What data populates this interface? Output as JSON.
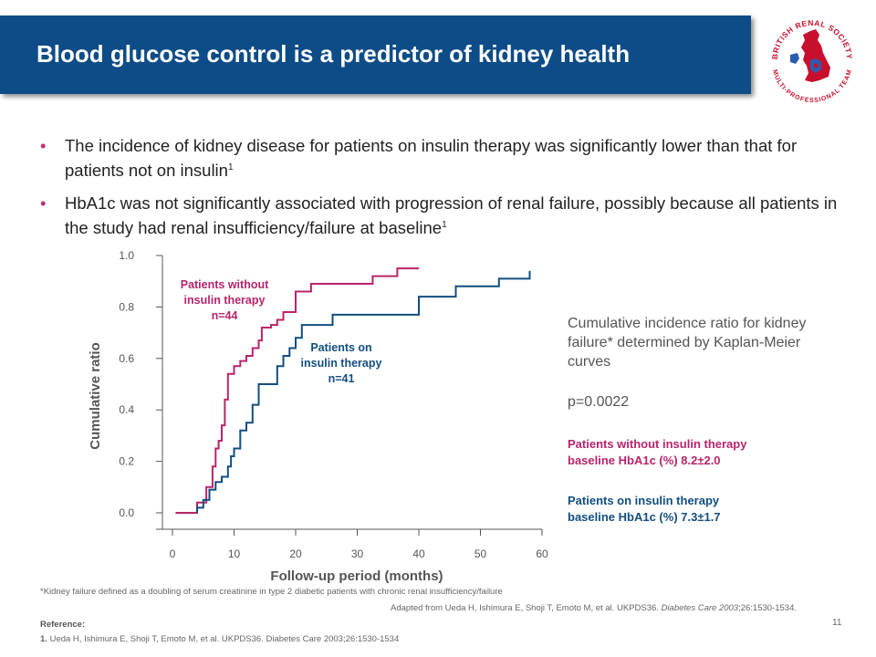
{
  "slide": {
    "title": "Blood glucose control is a predictor of kidney health",
    "bullets": [
      {
        "text": "The incidence of kidney disease for patients on insulin therapy was significantly lower than that for patients not on insulin",
        "sup": "1"
      },
      {
        "text": "HbA1c was not significantly associated with progression of renal failure, possibly because all patients in the study had renal insufficiency/failure at baseline",
        "sup": "1"
      }
    ],
    "side_description": "Cumulative incidence ratio for kidney failure* determined by Kaplan-Meier curves",
    "p_value": "p=0.0022",
    "group_without": {
      "line1": "Patients without insulin therapy",
      "line2": "baseline HbA1c (%) 8.2±2.0"
    },
    "group_with": {
      "line1": "Patients on insulin therapy",
      "line2": "baseline HbA1c (%) 7.3±1.7"
    },
    "footnote": "*Kidney failure defined as a doubling of serum creatinine in type 2 diabetic patients with chronic renal insufficiency/failure",
    "adapted_prefix": "Adapted from Ueda H, Ishimura E, Shoji T, Emoto M, et al. UKPDS36.",
    "adapted_journal": "Diabetes Care 2003",
    "adapted_suffix": ";26:1530-1534.",
    "reference_label": "Reference:",
    "reference_number": "1.",
    "reference_text": "Ueda H, Ishimura E, Shoji T, Emoto M, et al. UKPDS36. Diabetes Care 2003;26:1530-1534",
    "page_number": "11",
    "logo": {
      "top_text": "BRITISH RENAL SOCIETY",
      "bottom_text": "MULTI-PROFESSIONAL TEAM",
      "icon": "uk-map-with-kidney-icon"
    },
    "colors": {
      "title_bar": "#0d4c87",
      "without_insulin": "#b8246a",
      "with_insulin": "#124e7f",
      "bullet": "#c0316f"
    }
  },
  "chart_data": {
    "type": "line",
    "step": true,
    "xlabel": "Follow-up period (months)",
    "ylabel": "Cumulative ratio",
    "xlim": [
      0,
      60
    ],
    "ylim": [
      0.0,
      1.0
    ],
    "xticks": [
      "0",
      "10",
      "20",
      "30",
      "40",
      "50",
      "60"
    ],
    "yticks": [
      "0.0",
      "0.2",
      "0.4",
      "0.6",
      "0.8",
      "1.0"
    ],
    "grid": false,
    "series": [
      {
        "name": "Patients without insulin therapy",
        "label_lines": [
          "Patients without",
          "insulin therapy",
          "n=44"
        ],
        "color": "#b8246a",
        "points": [
          [
            0.5,
            0
          ],
          [
            4,
            0
          ],
          [
            4,
            0.04
          ],
          [
            5.5,
            0.04
          ],
          [
            5.5,
            0.1
          ],
          [
            6.5,
            0.1
          ],
          [
            6.5,
            0.18
          ],
          [
            7,
            0.18
          ],
          [
            7,
            0.25
          ],
          [
            7.5,
            0.25
          ],
          [
            7.5,
            0.28
          ],
          [
            8,
            0.28
          ],
          [
            8,
            0.34
          ],
          [
            8.5,
            0.34
          ],
          [
            8.5,
            0.44
          ],
          [
            9,
            0.44
          ],
          [
            9,
            0.54
          ],
          [
            10,
            0.54
          ],
          [
            10,
            0.57
          ],
          [
            11,
            0.57
          ],
          [
            11,
            0.59
          ],
          [
            12,
            0.59
          ],
          [
            12,
            0.61
          ],
          [
            13,
            0.61
          ],
          [
            13,
            0.64
          ],
          [
            14,
            0.64
          ],
          [
            14,
            0.67
          ],
          [
            14.5,
            0.67
          ],
          [
            14.5,
            0.72
          ],
          [
            16,
            0.72
          ],
          [
            16,
            0.73
          ],
          [
            17,
            0.73
          ],
          [
            17,
            0.75
          ],
          [
            18,
            0.75
          ],
          [
            18,
            0.78
          ],
          [
            20,
            0.78
          ],
          [
            20,
            0.86
          ],
          [
            22.5,
            0.86
          ],
          [
            22.5,
            0.89
          ],
          [
            32.5,
            0.89
          ],
          [
            32.5,
            0.92
          ],
          [
            36.5,
            0.92
          ],
          [
            36.5,
            0.95
          ],
          [
            40,
            0.95
          ]
        ]
      },
      {
        "name": "Patients on insulin therapy",
        "label_lines": [
          "Patients on",
          "insulin therapy",
          "n=41"
        ],
        "color": "#124e7f",
        "points": [
          [
            4,
            0
          ],
          [
            4,
            0.02
          ],
          [
            5,
            0.02
          ],
          [
            5,
            0.05
          ],
          [
            6,
            0.05
          ],
          [
            6,
            0.09
          ],
          [
            7,
            0.09
          ],
          [
            7,
            0.12
          ],
          [
            8,
            0.12
          ],
          [
            8,
            0.14
          ],
          [
            9,
            0.14
          ],
          [
            9,
            0.18
          ],
          [
            9.5,
            0.18
          ],
          [
            9.5,
            0.22
          ],
          [
            10,
            0.22
          ],
          [
            10,
            0.25
          ],
          [
            11,
            0.25
          ],
          [
            11,
            0.32
          ],
          [
            12,
            0.32
          ],
          [
            12,
            0.35
          ],
          [
            13,
            0.35
          ],
          [
            13,
            0.42
          ],
          [
            14,
            0.42
          ],
          [
            14,
            0.5
          ],
          [
            17,
            0.5
          ],
          [
            17,
            0.57
          ],
          [
            18,
            0.57
          ],
          [
            18,
            0.61
          ],
          [
            19,
            0.61
          ],
          [
            19,
            0.64
          ],
          [
            20,
            0.64
          ],
          [
            20,
            0.68
          ],
          [
            21,
            0.68
          ],
          [
            21,
            0.73
          ],
          [
            26,
            0.73
          ],
          [
            26,
            0.77
          ],
          [
            40,
            0.77
          ],
          [
            40,
            0.84
          ],
          [
            46,
            0.84
          ],
          [
            46,
            0.88
          ],
          [
            53,
            0.88
          ],
          [
            53,
            0.91
          ],
          [
            58,
            0.91
          ],
          [
            58,
            0.94
          ]
        ]
      }
    ]
  }
}
